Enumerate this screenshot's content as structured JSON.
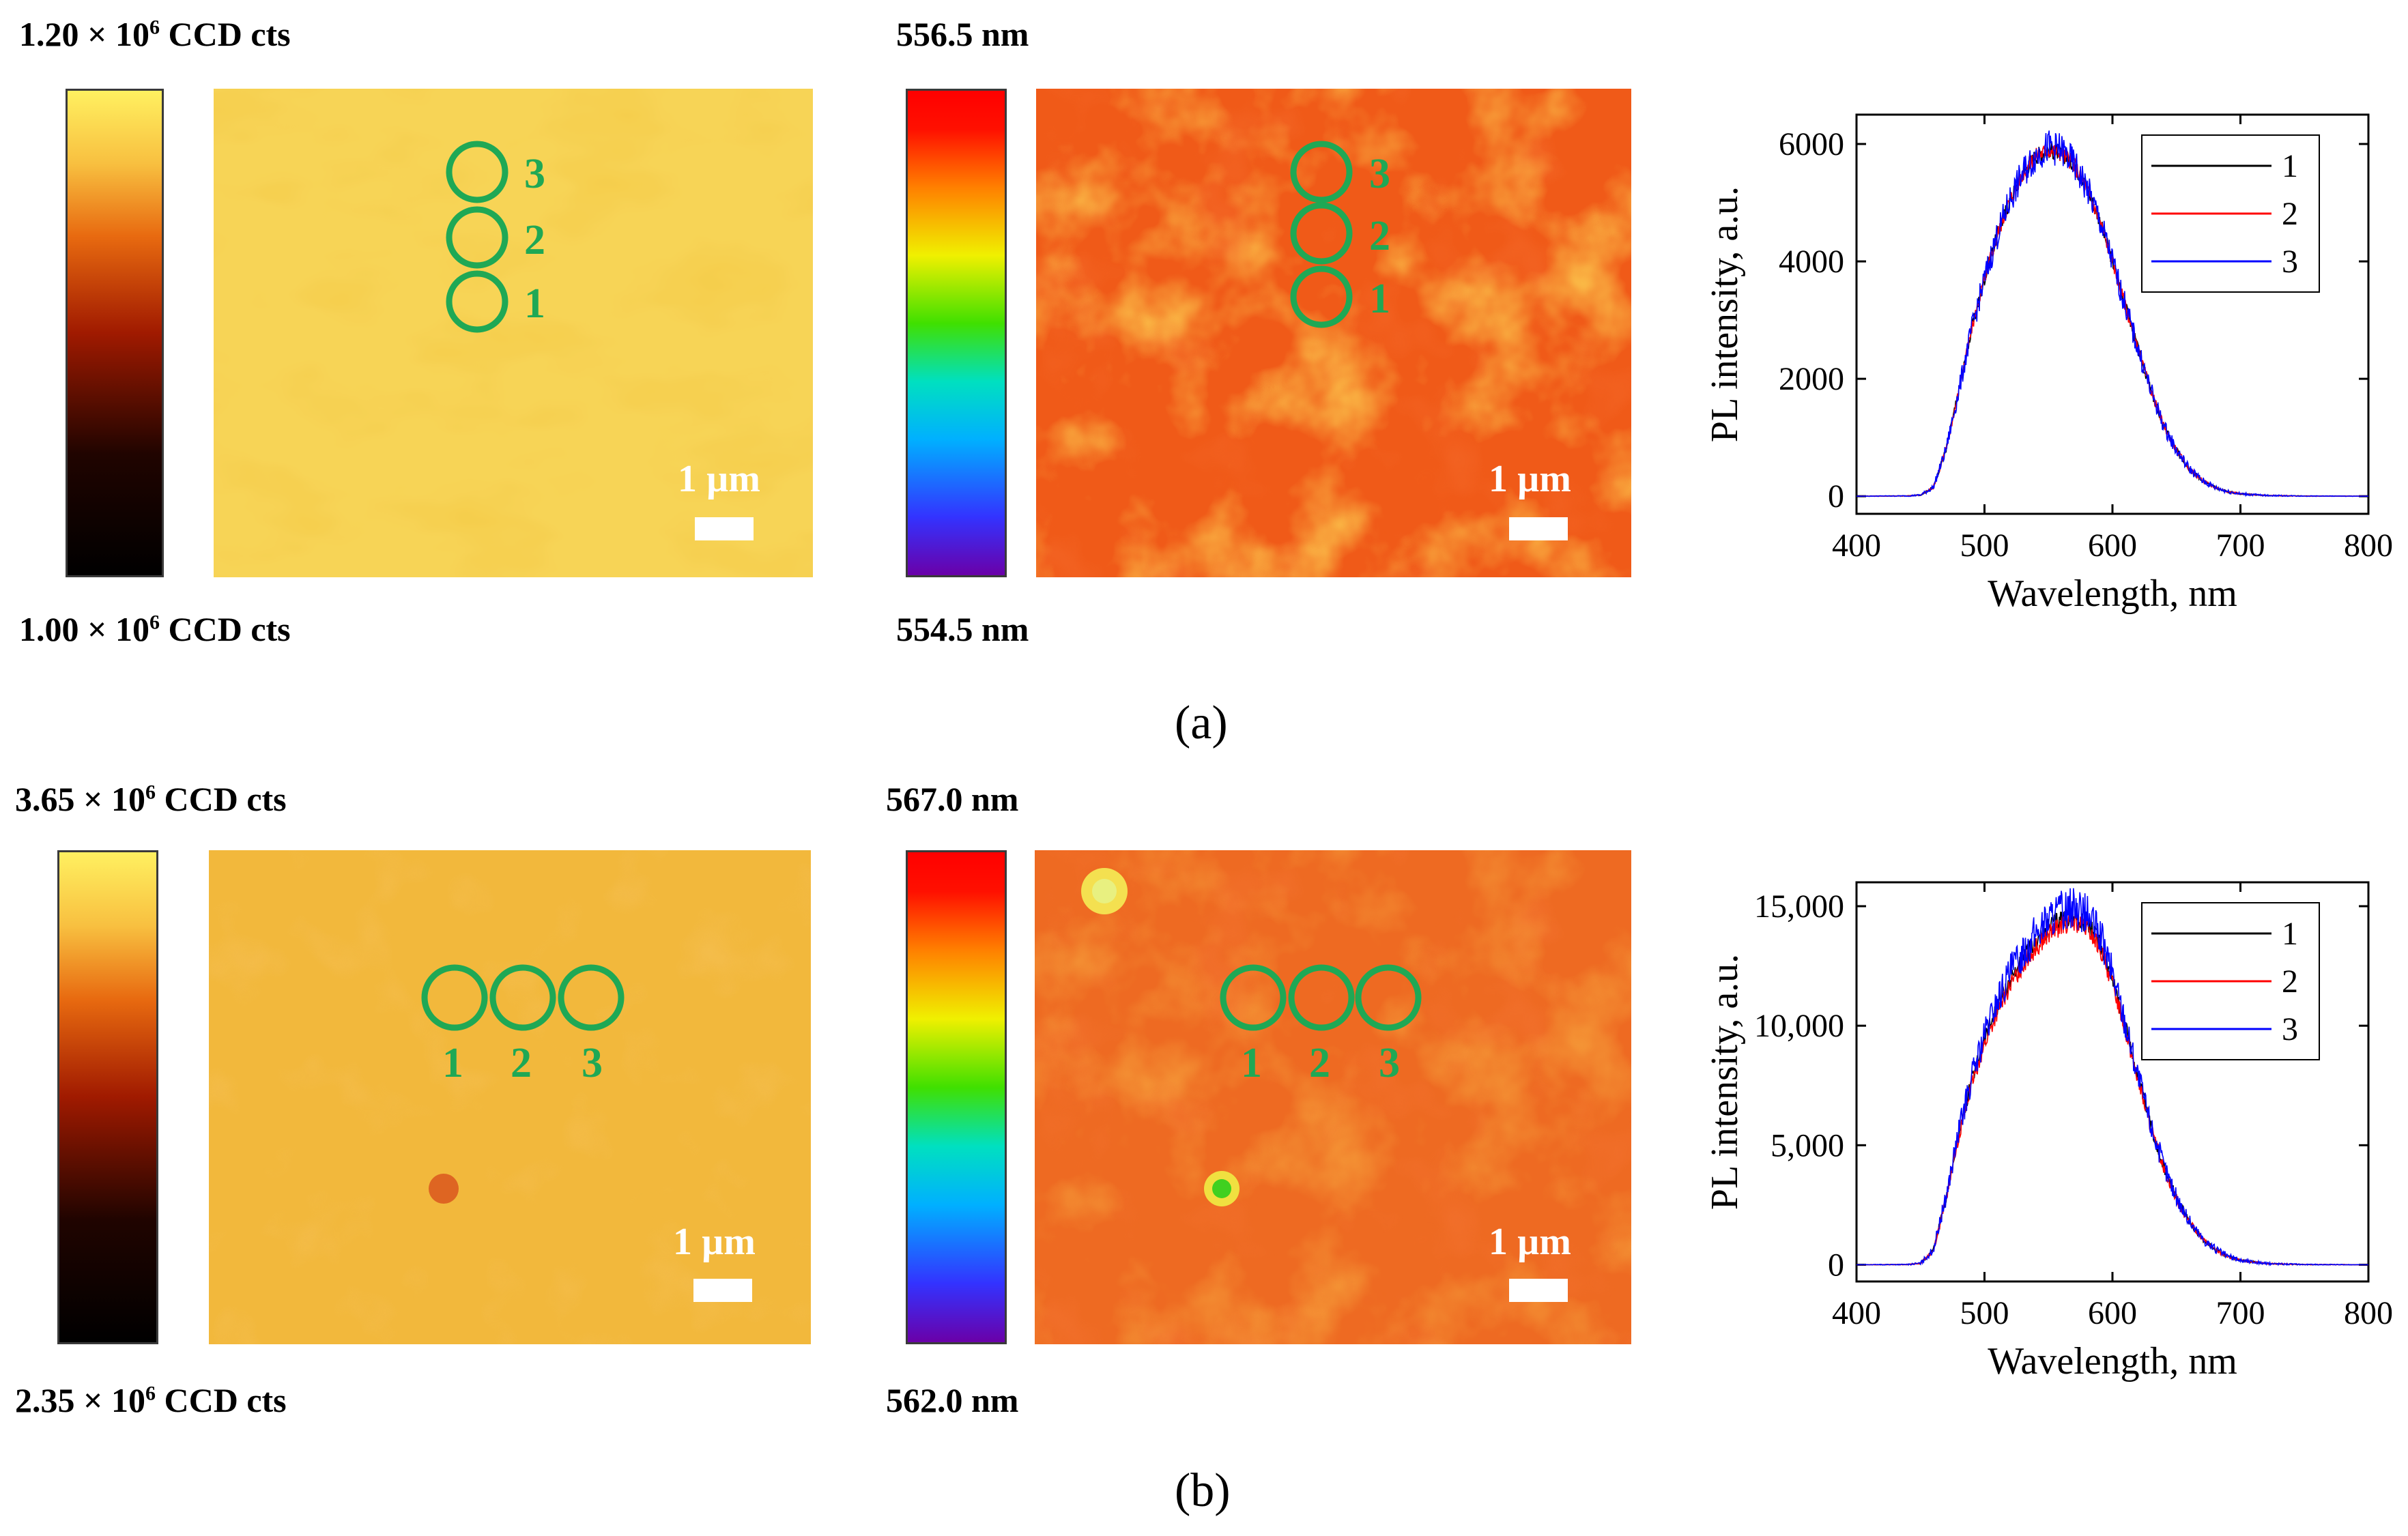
{
  "panels": [
    {
      "label": "(a)",
      "intensity_map": {
        "max_label": "1.20 × 10^6 CCD cts",
        "min_label": "1.00 × 10^6 CCD cts",
        "max_mantissa": "1.20 × 10",
        "min_mantissa": "1.00 × 10",
        "exponent": "6",
        "unit": "CCD cts",
        "scale_bar": "1 µm",
        "spots": [
          "1",
          "2",
          "3"
        ]
      },
      "wavelength_map": {
        "max_label": "556.5 nm",
        "min_label": "554.5 nm",
        "scale_bar": "1 µm",
        "spots": [
          "1",
          "2",
          "3"
        ]
      }
    },
    {
      "label": "(b)",
      "intensity_map": {
        "max_label": "3.65 × 10^6 CCD cts",
        "min_label": "2.35 × 10^6 CCD cts",
        "max_mantissa": "3.65 × 10",
        "min_mantissa": "2.35 × 10",
        "exponent": "6",
        "unit": "CCD cts",
        "scale_bar": "1 µm",
        "spots": [
          "1",
          "2",
          "3"
        ]
      },
      "wavelength_map": {
        "max_label": "567.0 nm",
        "min_label": "562.0 nm",
        "scale_bar": "1 µm",
        "spots": [
          "1",
          "2",
          "3"
        ]
      }
    }
  ],
  "colors": {
    "circle": "#1fa855",
    "series_1": "#000000",
    "series_2": "#ff0000",
    "series_3": "#0000ff"
  },
  "chart_data": [
    {
      "type": "line",
      "panel": "(a)",
      "xlabel": "Wavelength, nm",
      "ylabel": "PL intensity, a.u.",
      "xlim": [
        400,
        800
      ],
      "ylim": [
        -300,
        6500
      ],
      "xticks": [
        400,
        500,
        600,
        700,
        800
      ],
      "yticks": [
        0,
        2000,
        4000,
        6000
      ],
      "ytick_labels": [
        "0",
        "2000",
        "4000",
        "6000"
      ],
      "legend_position": "top-right",
      "x": [
        400,
        440,
        450,
        460,
        470,
        480,
        490,
        500,
        510,
        520,
        530,
        540,
        550,
        560,
        570,
        580,
        590,
        600,
        610,
        620,
        630,
        640,
        650,
        660,
        670,
        680,
        690,
        700,
        720,
        750,
        800
      ],
      "series": [
        {
          "name": "1",
          "values": [
            0,
            5,
            20,
            150,
            800,
            1800,
            2850,
            3700,
            4450,
            5050,
            5500,
            5800,
            5900,
            5850,
            5650,
            5250,
            4700,
            4000,
            3250,
            2500,
            1800,
            1200,
            780,
            470,
            270,
            150,
            80,
            40,
            12,
            3,
            0
          ]
        },
        {
          "name": "2",
          "values": [
            0,
            5,
            20,
            150,
            800,
            1800,
            2850,
            3700,
            4450,
            5050,
            5500,
            5800,
            5900,
            5850,
            5650,
            5250,
            4700,
            4000,
            3250,
            2500,
            1800,
            1200,
            780,
            470,
            270,
            150,
            80,
            40,
            12,
            3,
            0
          ]
        },
        {
          "name": "3",
          "values": [
            0,
            5,
            20,
            150,
            800,
            1800,
            2850,
            3700,
            4450,
            5050,
            5500,
            5800,
            5950,
            5900,
            5650,
            5250,
            4700,
            4000,
            3250,
            2500,
            1800,
            1200,
            780,
            470,
            270,
            150,
            80,
            40,
            12,
            3,
            0
          ]
        }
      ]
    },
    {
      "type": "line",
      "panel": "(b)",
      "xlabel": "Wavelength, nm",
      "ylabel": "PL intensity, a.u.",
      "xlim": [
        400,
        800
      ],
      "ylim": [
        -700,
        16000
      ],
      "xticks": [
        400,
        500,
        600,
        700,
        800
      ],
      "yticks": [
        0,
        5000,
        10000,
        15000
      ],
      "ytick_labels": [
        "0",
        "5,000",
        "10,000",
        "15,000"
      ],
      "legend_position": "top-right",
      "x": [
        400,
        440,
        450,
        460,
        470,
        480,
        490,
        500,
        510,
        520,
        530,
        540,
        550,
        560,
        570,
        580,
        590,
        600,
        610,
        620,
        630,
        640,
        650,
        660,
        670,
        680,
        690,
        700,
        720,
        750,
        800
      ],
      "series": [
        {
          "name": "1",
          "values": [
            0,
            10,
            60,
            600,
            2800,
            5500,
            7700,
            9400,
            10800,
            11900,
            12800,
            13500,
            14100,
            14500,
            14600,
            14300,
            13500,
            12000,
            10000,
            7800,
            5800,
            4100,
            2800,
            1800,
            1100,
            650,
            350,
            180,
            50,
            10,
            0
          ]
        },
        {
          "name": "2",
          "values": [
            0,
            10,
            60,
            580,
            2750,
            5400,
            7550,
            9200,
            10550,
            11650,
            12550,
            13250,
            13800,
            14200,
            14300,
            14050,
            13250,
            11800,
            9850,
            7700,
            5700,
            4050,
            2750,
            1780,
            1090,
            640,
            345,
            175,
            50,
            10,
            0
          ]
        },
        {
          "name": "3",
          "values": [
            0,
            10,
            60,
            620,
            2850,
            5600,
            7850,
            9600,
            11050,
            12200,
            13100,
            13850,
            14450,
            14850,
            14950,
            14650,
            13800,
            12200,
            10150,
            7900,
            5850,
            4150,
            2830,
            1820,
            1110,
            660,
            355,
            182,
            50,
            10,
            0
          ]
        }
      ]
    }
  ]
}
